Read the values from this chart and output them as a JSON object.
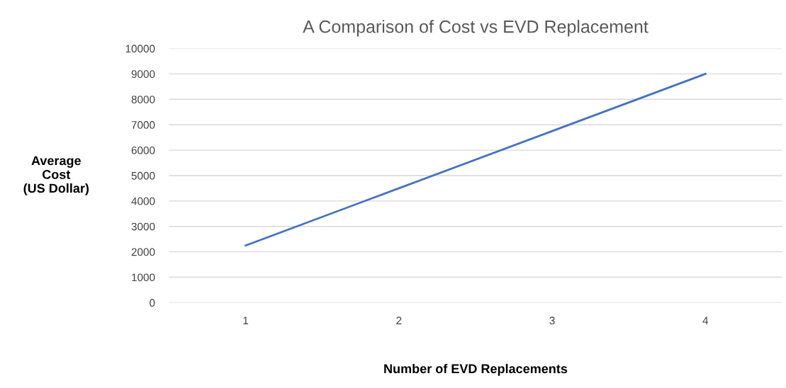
{
  "chart_data": {
    "type": "line",
    "title": "A Comparison of Cost vs EVD Replacement",
    "xlabel": "Number of EVD Replacements",
    "ylabel": "Average\nCost\n(US Dollar)",
    "categories": [
      "1",
      "2",
      "3",
      "4"
    ],
    "series": [
      {
        "color": "#4472c4",
        "values": [
          2250,
          4500,
          6750,
          9000
        ]
      }
    ],
    "ylim": [
      0,
      10000
    ],
    "yticks": [
      0,
      1000,
      2000,
      3000,
      4000,
      5000,
      6000,
      7000,
      8000,
      9000,
      10000
    ],
    "grid": "y",
    "legend": false,
    "marker": "none",
    "line_style": "solid"
  }
}
